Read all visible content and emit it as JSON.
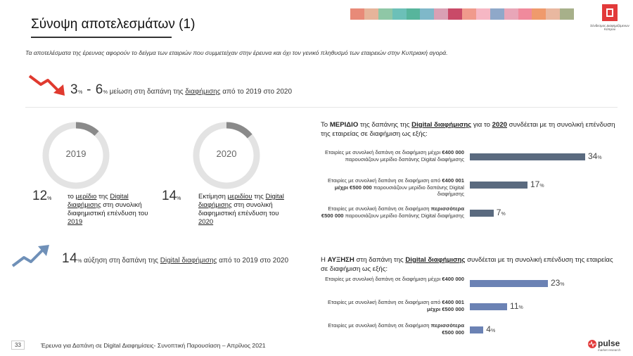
{
  "header": {
    "title": "Σύνοψη αποτελεσμάτων (1)",
    "colorbar": [
      "#e88a78",
      "#e6b49a",
      "#8fc7a6",
      "#6cc0b8",
      "#57b59c",
      "#7fb8c9",
      "#d9a0b4",
      "#c94a68",
      "#f09a8c",
      "#f6b7c4",
      "#8fa8c9",
      "#e8a6b8",
      "#f08a9c",
      "#ef9a6c",
      "#e9b8a0",
      "#a7b08a"
    ],
    "logo_sub": "Σύνδεσμος Διαφημιζόμενων Κύπρου"
  },
  "intro": "Τα αποτελέσματα της έρευνας αφορούν το δείγμα των εταιριών που συμμετείχαν στην έρευνα και όχι τον γενικό πληθυσμό των εταιρειών στην Κυπριακή αγορά.",
  "stat_decrease": {
    "n1": "3",
    "pct1": "%",
    "dash": " - ",
    "n2": "6",
    "pct2": "%",
    "text_a": " μείωση στη δαπάνη της ",
    "text_u": "διαφήμισης",
    "text_b": " από το 2019 στο 2020"
  },
  "donut_2019": {
    "year": "2019",
    "value": "12",
    "pct": "%",
    "share": 0.12,
    "t1": "το ",
    "t1u": "μερίδιο",
    "t2": " της ",
    "t2u": "Digital διαφήμισης",
    "t3": " στη συνολική διαφημιστική επένδυση του ",
    "t3u": "2019"
  },
  "donut_2020": {
    "year": "2020",
    "value": "14",
    "pct": "%",
    "share": 0.14,
    "t1": "Εκτίμηση ",
    "t1u": "μεριδίου",
    "t2": " της ",
    "t2u": "Digital διαφήμισης",
    "t3": " στη συνολική διαφημιστική επένδυση του ",
    "t3u": "2020"
  },
  "stat_increase": {
    "n": "14",
    "pct": "%",
    "text_a": " αύξηση στη δαπάνη της ",
    "text_u": "Digital διαφήμισης",
    "text_b": " από το 2019 στο 2020"
  },
  "right_top": {
    "h1": "Το ",
    "h1b": "ΜΕΡΙΔΙΟ",
    "h2": " της δαπάνης της ",
    "h2u": "Digital διαφήμισης",
    "h3": " για το ",
    "h3u": "2020",
    "h4": " συνδέεται με τη συνολική επένδυση της εταιρείας σε διαφήμιση ως εξής:"
  },
  "right_bottom": {
    "h1": "Η ",
    "h1b": "ΑΥΞΗΣΗ",
    "h2": " στη δαπάνη της ",
    "h2u": "Digital διαφήμισης",
    "h3": " συνδέεται με τη συνολική επένδυση της εταιρείας σε διαφήμιση ως εξής:"
  },
  "chart_data": [
    {
      "type": "bar",
      "categories": [
        "Εταιρίες με συνολική δαπάνη σε διαφήμιση μέχρι €400 000 παρουσιάζουν μερίδιο δαπάνης Digital διαφήμισης",
        "Εταιρίες με συνολική δαπάνη σε διαφήμιση από €400 001 μέχρι €500 000 παρουσιάζουν μερίδιο δαπάνης Digital διαφήμισης",
        "Εταιρίες με συνολική δαπάνη σε διαφήμιση περισσότερα €500 000 παρουσιάζουν μερίδιο δαπάνης Digital διαφήμισης"
      ],
      "values": [
        34,
        17,
        7
      ],
      "labels": [
        "34",
        "17",
        "7"
      ],
      "unit": "%",
      "color": "#5a6a7f"
    },
    {
      "type": "bar",
      "categories": [
        "Εταιρίες με συνολική δαπάνη σε διαφήμιση μέχρι €400 000",
        "Εταιρίες με συνολική δαπάνη σε διαφήμιση από €400 001 μέχρι €500 000",
        "Εταιρίες με συνολική δαπάνη σε διαφήμιση περισσότερα €500 000"
      ],
      "values": [
        23,
        11,
        4
      ],
      "labels": [
        "23",
        "11",
        "4"
      ],
      "unit": "%",
      "color": "#6b82b4"
    }
  ],
  "bar_label_rows_top": [
    [
      "Εταιρίες με συνολική δαπάνη σε ",
      "διαφήμιση μέχρι",
      "€400 000",
      " παρουσιάζουν μερίδιο δαπάνης Digital διαφήμισης"
    ],
    [
      "Εταιρίες με συνολική δαπάνη σε διαφήμιση ",
      "από",
      "€400 001 μέχρι €500 000",
      " παρουσιάζουν μερίδιο δαπάνης Digital διαφήμισης"
    ],
    [
      "Εταιρίες με συνολική δαπάνη σε διαφήμιση ",
      "",
      "περισσότερα €500 000",
      " παρουσιάζουν μερίδιο δαπάνης Digital διαφήμισης"
    ]
  ],
  "bar_label_rows_bottom": [
    [
      "Εταιρίες με συνολική δαπάνη σε διαφήμιση μέχρι ",
      "€400 000"
    ],
    [
      "Εταιρίες με συνολική δαπάνη σε διαφήμιση από ",
      "€400 001 μέχρι €500 000"
    ],
    [
      "Εταιρίες με συνολική δαπάνη σε διαφήμιση ",
      "περισσότερα €500 000"
    ]
  ],
  "footer": {
    "page": "33",
    "text": "Έρευνα για Δαπάνη σε Digital Διαφημίσεις- Συνοπτική Παρουσίαση – Απρίλιος 2021",
    "brand": "pulse",
    "brand_sub": "market research"
  },
  "icons": {
    "down": "trend-down-arrow-icon",
    "up": "trend-up-arrow-icon",
    "logo": "advertisers-logo-icon"
  }
}
